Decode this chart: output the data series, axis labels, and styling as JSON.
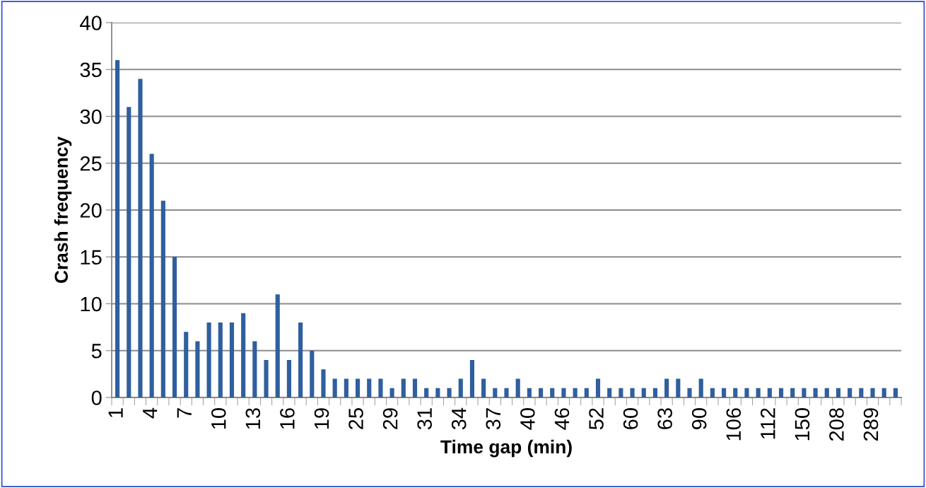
{
  "chart_data": {
    "type": "bar",
    "xlabel": "Time gap (min)",
    "ylabel": "Crash frequency",
    "categories": [
      "1",
      null,
      null,
      "4",
      null,
      null,
      "7",
      null,
      null,
      "10",
      null,
      null,
      "13",
      null,
      null,
      "16",
      null,
      null,
      "19",
      null,
      null,
      "25",
      null,
      null,
      "29",
      null,
      null,
      "31",
      null,
      null,
      "34",
      null,
      null,
      "37",
      null,
      null,
      "40",
      null,
      null,
      "46",
      null,
      null,
      "52",
      null,
      null,
      "60",
      null,
      null,
      "63",
      null,
      null,
      "90",
      null,
      null,
      "106",
      null,
      null,
      "112",
      null,
      null,
      "150",
      null,
      null,
      "208",
      null,
      null,
      "289",
      null,
      null
    ],
    "values": [
      36,
      31,
      34,
      26,
      21,
      15,
      7,
      6,
      8,
      8,
      8,
      9,
      6,
      4,
      11,
      4,
      8,
      5,
      3,
      2,
      2,
      2,
      2,
      2,
      1,
      2,
      2,
      1,
      1,
      1,
      2,
      4,
      2,
      1,
      1,
      2,
      1,
      1,
      1,
      1,
      1,
      1,
      2,
      1,
      1,
      1,
      1,
      1,
      2,
      2,
      1,
      2,
      1,
      1,
      1,
      1,
      1,
      1,
      1,
      1,
      1,
      1,
      1,
      1,
      1,
      1,
      1,
      1,
      1
    ],
    "color": "#2f5f9e",
    "ylim": [
      0,
      40
    ],
    "yticks": [
      0,
      5,
      10,
      15,
      20,
      25,
      30,
      35,
      40
    ],
    "grid": "y",
    "legend": false
  }
}
